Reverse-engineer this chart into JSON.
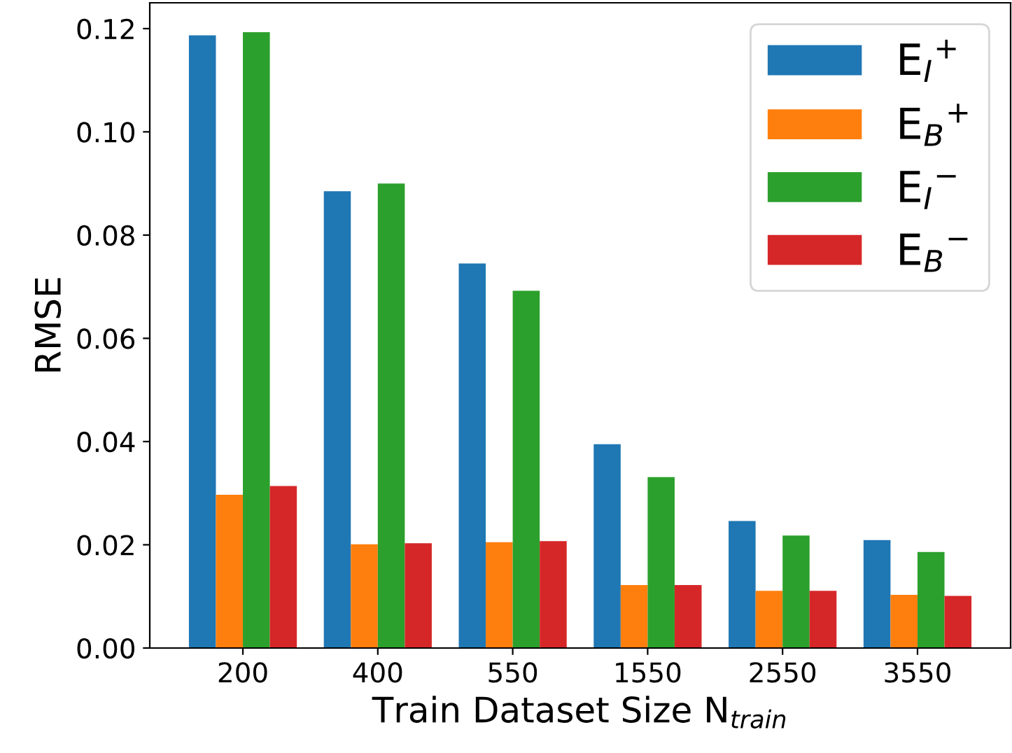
{
  "chart_data": {
    "type": "bar",
    "xlabel": "Train Dataset Size N$_{train}$",
    "ylabel": "RMSE",
    "categories": [
      "200",
      "400",
      "550",
      "1550",
      "2550",
      "3550"
    ],
    "series": [
      {
        "name": "E$_{I}$$^{+}$",
        "color": "#1f77b4",
        "values": [
          0.1187,
          0.0885,
          0.0745,
          0.0395,
          0.0246,
          0.0209
        ]
      },
      {
        "name": "E$_{B}$$^{+}$",
        "color": "#ff7f0e",
        "values": [
          0.0297,
          0.0201,
          0.0205,
          0.0122,
          0.0111,
          0.0103
        ]
      },
      {
        "name": "E$_{I}$$^{−}$",
        "color": "#2ca02c",
        "values": [
          0.1193,
          0.09,
          0.0692,
          0.0331,
          0.0218,
          0.0186
        ]
      },
      {
        "name": "E$_{B}$$^{−}$",
        "color": "#d62728",
        "values": [
          0.0314,
          0.0203,
          0.0207,
          0.0122,
          0.0111,
          0.0101
        ]
      }
    ],
    "ylim": [
      0,
      0.125
    ],
    "yticks": [
      {
        "value": 0,
        "label": "0.00"
      },
      {
        "value": 0.02,
        "label": "0.02"
      },
      {
        "value": 0.04,
        "label": "0.04"
      },
      {
        "value": 0.06,
        "label": "0.06"
      },
      {
        "value": 0.08,
        "label": "0.08"
      },
      {
        "value": 0.1,
        "label": "0.10"
      },
      {
        "value": 0.12,
        "label": "0.12"
      }
    ],
    "grid": false,
    "legend": "top right"
  }
}
